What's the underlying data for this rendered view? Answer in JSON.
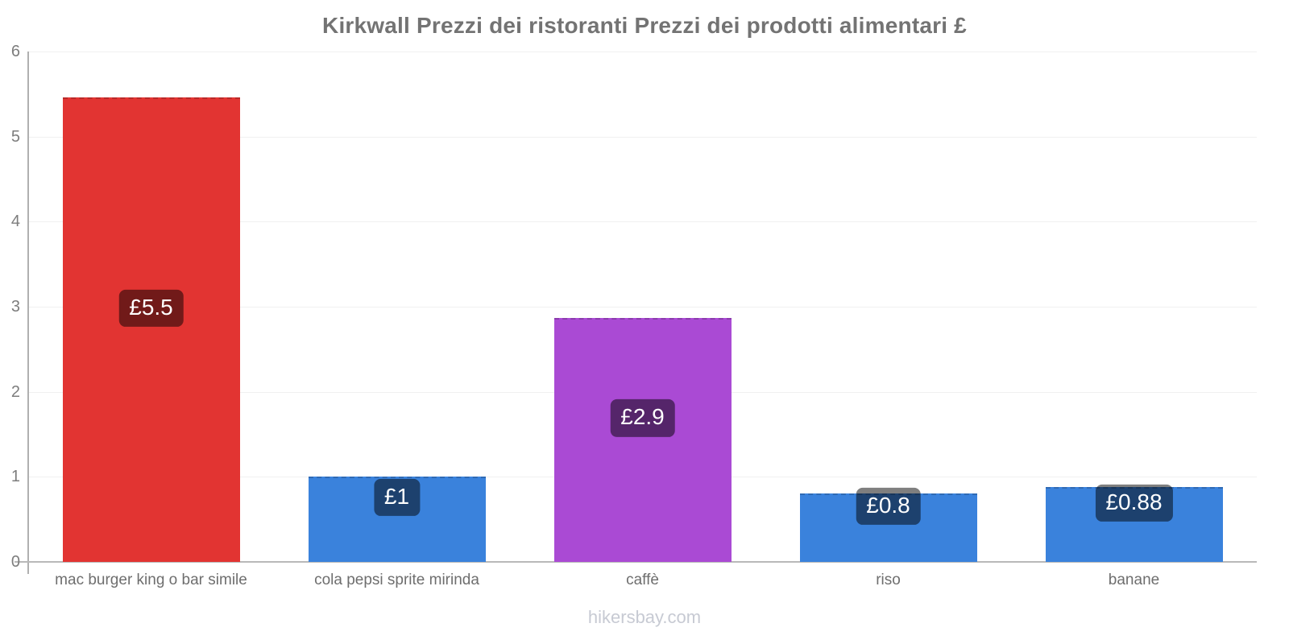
{
  "title": "Kirkwall Prezzi dei ristoranti Prezzi dei prodotti alimentari £",
  "footer": {
    "label": "hikersbay.com"
  },
  "colors": {
    "red": "#e23432",
    "blue": "#3a82dc",
    "purple": "#aa4ad4",
    "grid": "#f0f0f0",
    "axis": "#b0b0b0",
    "badge_bg": "rgba(0,0,0,0.5)"
  },
  "chart_data": {
    "type": "bar",
    "title": "Kirkwall Prezzi dei ristoranti Prezzi dei prodotti alimentari £",
    "xlabel": "",
    "ylabel": "",
    "currency": "£",
    "categories": [
      "mac burger king o bar simile",
      "cola pepsi sprite mirinda",
      "caffè",
      "riso",
      "banane"
    ],
    "values": [
      5.46,
      1.0,
      2.87,
      0.8,
      0.88
    ],
    "value_labels": [
      "£5.5",
      "£1",
      "£2.9",
      "£0.8",
      "£0.88"
    ],
    "bar_colors": [
      "#e23432",
      "#3a82dc",
      "#aa4ad4",
      "#3a82dc",
      "#3a82dc"
    ],
    "ylim": [
      0,
      6
    ],
    "yticks": [
      0,
      1,
      2,
      3,
      4,
      5,
      6
    ],
    "grid": true,
    "legend_position": "none"
  }
}
